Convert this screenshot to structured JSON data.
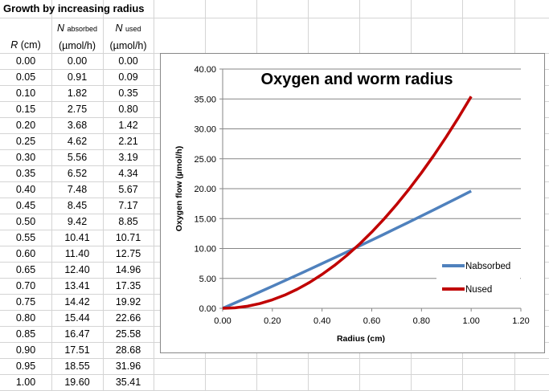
{
  "sheet": {
    "title": "Growth by increasing radius",
    "headers": {
      "r": {
        "symbol": "R",
        "unit": "(cm)"
      },
      "absorbed": {
        "symbol": "N",
        "subscript": "absorbed",
        "unit": "(µmol/h)"
      },
      "used": {
        "symbol": "N",
        "subscript": "used",
        "unit": "(µmol/h)"
      }
    },
    "rows": [
      [
        "0.00",
        "0.00",
        "0.00"
      ],
      [
        "0.05",
        "0.91",
        "0.09"
      ],
      [
        "0.10",
        "1.82",
        "0.35"
      ],
      [
        "0.15",
        "2.75",
        "0.80"
      ],
      [
        "0.20",
        "3.68",
        "1.42"
      ],
      [
        "0.25",
        "4.62",
        "2.21"
      ],
      [
        "0.30",
        "5.56",
        "3.19"
      ],
      [
        "0.35",
        "6.52",
        "4.34"
      ],
      [
        "0.40",
        "7.48",
        "5.67"
      ],
      [
        "0.45",
        "8.45",
        "7.17"
      ],
      [
        "0.50",
        "9.42",
        "8.85"
      ],
      [
        "0.55",
        "10.41",
        "10.71"
      ],
      [
        "0.60",
        "11.40",
        "12.75"
      ],
      [
        "0.65",
        "12.40",
        "14.96"
      ],
      [
        "0.70",
        "13.41",
        "17.35"
      ],
      [
        "0.75",
        "14.42",
        "19.92"
      ],
      [
        "0.80",
        "15.44",
        "22.66"
      ],
      [
        "0.85",
        "16.47",
        "25.58"
      ],
      [
        "0.90",
        "17.51",
        "28.68"
      ],
      [
        "0.95",
        "18.55",
        "31.96"
      ],
      [
        "1.00",
        "19.60",
        "35.41"
      ]
    ]
  },
  "chart_data": {
    "type": "line",
    "title": "Oxygen and worm radius",
    "xlabel": "Radius (cm)",
    "ylabel": "Oxygen flow (µmol/h)",
    "xlim": [
      0,
      1.2
    ],
    "ylim": [
      0,
      40
    ],
    "xticks": [
      "0.00",
      "0.20",
      "0.40",
      "0.60",
      "0.80",
      "1.00",
      "1.20"
    ],
    "yticks": [
      "0.00",
      "5.00",
      "10.00",
      "15.00",
      "20.00",
      "25.00",
      "30.00",
      "35.00",
      "40.00"
    ],
    "grid": "horizontal",
    "legend": "right",
    "x": [
      0,
      0.05,
      0.1,
      0.15,
      0.2,
      0.25,
      0.3,
      0.35,
      0.4,
      0.45,
      0.5,
      0.55,
      0.6,
      0.65,
      0.7,
      0.75,
      0.8,
      0.85,
      0.9,
      0.95,
      1.0
    ],
    "series": [
      {
        "name": "Nabsorbed",
        "color": "#4f81bd",
        "values": [
          0,
          0.91,
          1.82,
          2.75,
          3.68,
          4.62,
          5.56,
          6.52,
          7.48,
          8.45,
          9.42,
          10.41,
          11.4,
          12.4,
          13.41,
          14.42,
          15.44,
          16.47,
          17.51,
          18.55,
          19.6
        ]
      },
      {
        "name": "Nused",
        "color": "#c00000",
        "values": [
          0,
          0.09,
          0.35,
          0.8,
          1.42,
          2.21,
          3.19,
          4.34,
          5.67,
          7.17,
          8.85,
          10.71,
          12.75,
          14.96,
          17.35,
          19.92,
          22.66,
          25.58,
          28.68,
          31.96,
          35.41
        ]
      }
    ]
  }
}
